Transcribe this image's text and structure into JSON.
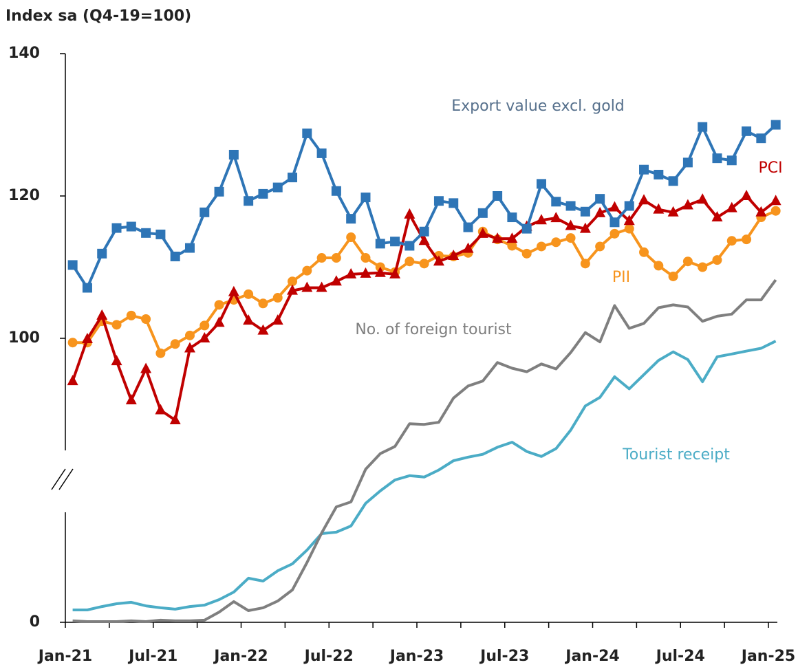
{
  "chart_data": {
    "type": "line",
    "y_label": "Index sa (Q4-19=100)",
    "categories": [
      "Jan-21",
      null,
      null,
      null,
      null,
      null,
      "Jul-21",
      null,
      null,
      null,
      null,
      null,
      "Jan-22",
      null,
      null,
      null,
      null,
      null,
      "Jul-22",
      null,
      null,
      null,
      null,
      null,
      "Jan-23",
      null,
      null,
      null,
      null,
      null,
      "Jul-23",
      null,
      null,
      null,
      null,
      null,
      "Jan-24",
      null,
      null,
      null,
      null,
      null,
      "Jul-24",
      null,
      null,
      null,
      null,
      null,
      "Jan-25"
    ],
    "ylim": [
      0,
      140
    ],
    "yticks": [
      0,
      100,
      120,
      140
    ],
    "y_break": 80,
    "grid": false,
    "series": [
      {
        "name": "Tourist receipt",
        "color": "#4bacc6",
        "marker": "none",
        "values": [
          7.0,
          7.0,
          8.9,
          10.5,
          11.3,
          9.3,
          8.2,
          7.4,
          8.9,
          9.7,
          12.8,
          17.1,
          24.9,
          23.3,
          29.1,
          33.0,
          40.8,
          50.1,
          50.9,
          54.4,
          67.2,
          74.2,
          80.1,
          80.7,
          80.5,
          81.5,
          82.8,
          83.3,
          83.7,
          84.7,
          85.4,
          84.1,
          83.4,
          84.5,
          87.1,
          90.5,
          91.7,
          94.6,
          92.9,
          94.9,
          96.9,
          98.1,
          97.0,
          93.9,
          97.4,
          97.8,
          98.2,
          98.6,
          99.6
        ]
      },
      {
        "name": "No. of foreign tourist",
        "color": "#7f7f7f",
        "marker": "none",
        "values": [
          0.8,
          0.4,
          0.4,
          0.4,
          0.8,
          0.4,
          1.2,
          0.8,
          0.8,
          1.2,
          5.8,
          11.7,
          6.6,
          8.2,
          12.0,
          18.3,
          33.8,
          50.5,
          65.2,
          68.0,
          81.6,
          83.8,
          84.8,
          88.0,
          87.9,
          88.2,
          91.6,
          93.3,
          94.0,
          96.6,
          95.8,
          95.3,
          96.4,
          95.7,
          98.0,
          100.8,
          99.5,
          104.6,
          101.4,
          102.1,
          104.3,
          104.7,
          104.4,
          102.4,
          103.1,
          103.4,
          105.4,
          105.4,
          108.2
        ]
      },
      {
        "name": "PII",
        "color": "#f7941d",
        "marker": "circle",
        "values": [
          99.4,
          99.4,
          102.4,
          101.9,
          103.2,
          102.7,
          97.9,
          99.2,
          100.4,
          101.8,
          104.7,
          105.4,
          106.2,
          104.9,
          105.7,
          108.0,
          109.5,
          111.3,
          111.3,
          114.2,
          111.3,
          110.0,
          109.3,
          110.8,
          110.5,
          111.6,
          111.5,
          112.0,
          115.0,
          113.9,
          113.0,
          111.9,
          112.9,
          113.5,
          114.1,
          110.5,
          112.9,
          114.7,
          115.4,
          112.1,
          110.2,
          108.7,
          110.8,
          110.0,
          111.0,
          113.7,
          113.9,
          117.0,
          117.9
        ]
      },
      {
        "name": "PCI",
        "color": "#c00000",
        "marker": "triangle",
        "values": [
          94.0,
          99.9,
          103.2,
          96.8,
          91.3,
          95.7,
          89.9,
          88.5,
          98.6,
          100.0,
          102.2,
          106.5,
          102.5,
          101.1,
          102.5,
          106.7,
          107.1,
          107.1,
          108.0,
          109.0,
          109.1,
          109.2,
          109.0,
          117.4,
          113.7,
          110.8,
          111.6,
          112.6,
          114.7,
          114.0,
          114.0,
          115.7,
          116.6,
          116.9,
          115.8,
          115.4,
          117.6,
          118.4,
          116.5,
          119.4,
          118.1,
          117.7,
          118.7,
          119.5,
          117.0,
          118.3,
          120.0,
          117.7,
          119.3
        ]
      },
      {
        "name": "Export value excl. gold",
        "color": "#2e75b6",
        "marker": "square",
        "values": [
          110.3,
          107.1,
          111.9,
          115.5,
          115.7,
          114.8,
          114.6,
          111.5,
          112.7,
          117.7,
          120.6,
          125.8,
          119.3,
          120.3,
          121.2,
          122.6,
          128.8,
          126.0,
          120.7,
          116.8,
          119.8,
          113.3,
          113.6,
          113.0,
          115.0,
          119.3,
          119.0,
          115.6,
          117.6,
          120.0,
          117.0,
          115.4,
          121.7,
          119.2,
          118.6,
          117.8,
          119.6,
          116.3,
          118.6,
          123.7,
          123.0,
          122.1,
          124.7,
          129.7,
          125.3,
          125.0,
          129.1,
          128.1,
          130.0
        ]
      }
    ]
  }
}
